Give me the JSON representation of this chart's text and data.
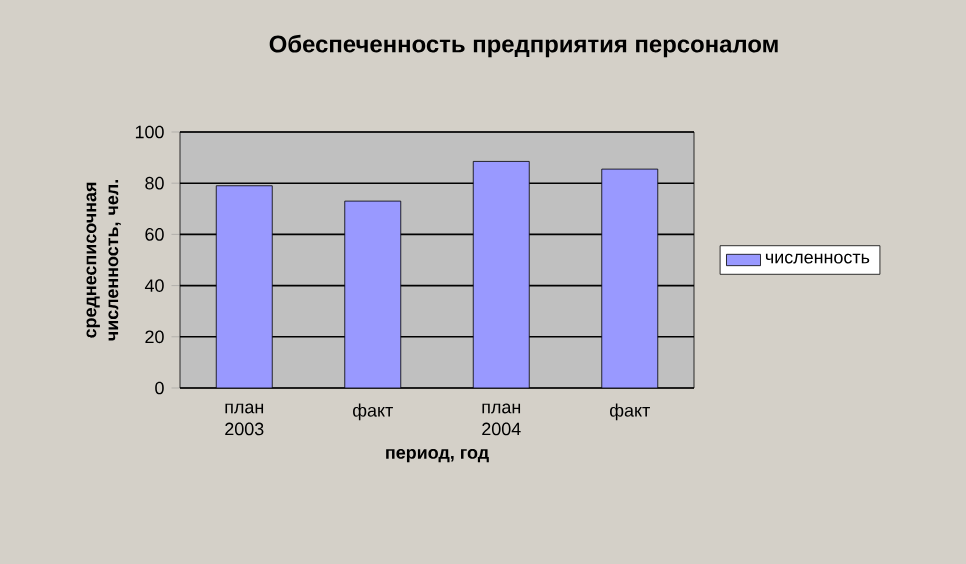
{
  "chart_data": {
    "type": "bar",
    "title": "Обеспеченность предприятия персоналом",
    "xlabel": "период, год",
    "ylabel": "среднесписочная численность, чел.",
    "categories": [
      "план 2003",
      "факт",
      "план 2004",
      "факт"
    ],
    "series": [
      {
        "name": "численность",
        "color": "#9999ff",
        "values": [
          79,
          73,
          88.5,
          85.5
        ]
      }
    ],
    "ylim": [
      0,
      100
    ],
    "yticks": [
      0,
      20,
      40,
      60,
      80,
      100
    ],
    "grid": "y",
    "legend": "right"
  }
}
